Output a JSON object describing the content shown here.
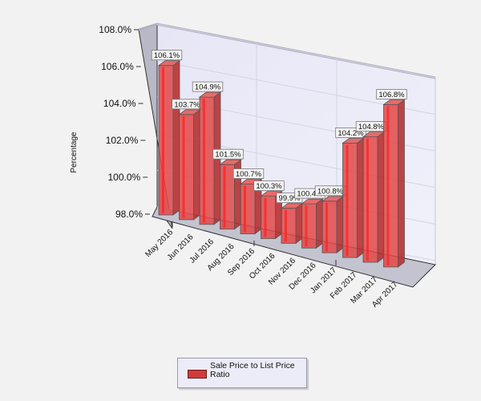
{
  "chart_data": {
    "type": "bar",
    "style": "3d",
    "title": "",
    "xlabel": "",
    "ylabel": "Percentage",
    "ylim": [
      98.0,
      108.0
    ],
    "yticks": [
      "108.0%",
      "106.0%",
      "104.0%",
      "102.0%",
      "100.0%",
      "98.0%"
    ],
    "categories": [
      "May 2016",
      "Jun 2016",
      "Jul 2016",
      "Aug 2016",
      "Sep 2016",
      "Oct 2016",
      "Nov 2016",
      "Dec 2016",
      "Jan 2017",
      "Feb 2017",
      "Mar 2017",
      "Apr 2017"
    ],
    "series": [
      {
        "name": "Sale Price to List Price Ratio",
        "color": "#d23a3a",
        "values": [
          106.1,
          103.7,
          104.9,
          101.5,
          100.7,
          100.3,
          99.9,
          100.4,
          100.8,
          104.2,
          104.8,
          106.8
        ],
        "labels": [
          "106.1%",
          "103.7%",
          "104.9%",
          "101.5%",
          "100.7%",
          "100.3%",
          "99.9%",
          "100.4%",
          "100.8%",
          "104.2%",
          "104.8%",
          "106.8%"
        ]
      }
    ],
    "grid": true,
    "legend_position": "bottom"
  },
  "legend": {
    "label": "Sale Price to List Price Ratio"
  }
}
